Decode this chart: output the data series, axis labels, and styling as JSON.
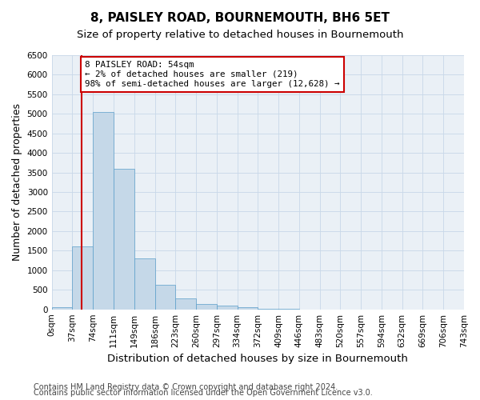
{
  "title": "8, PAISLEY ROAD, BOURNEMOUTH, BH6 5ET",
  "subtitle": "Size of property relative to detached houses in Bournemouth",
  "xlabel": "Distribution of detached houses by size in Bournemouth",
  "ylabel": "Number of detached properties",
  "bin_labels": [
    "0sqm",
    "37sqm",
    "74sqm",
    "111sqm",
    "149sqm",
    "186sqm",
    "223sqm",
    "260sqm",
    "297sqm",
    "334sqm",
    "372sqm",
    "409sqm",
    "446sqm",
    "483sqm",
    "520sqm",
    "557sqm",
    "594sqm",
    "632sqm",
    "669sqm",
    "706sqm",
    "743sqm"
  ],
  "bar_values": [
    50,
    1620,
    5050,
    3600,
    1300,
    620,
    270,
    130,
    90,
    50,
    10,
    10,
    0,
    0,
    0,
    0,
    0,
    0,
    0,
    0
  ],
  "bar_color": "#c5d8e8",
  "bar_edge_color": "#5a9ec9",
  "annotation_text": "8 PAISLEY ROAD: 54sqm\n← 2% of detached houses are smaller (219)\n98% of semi-detached houses are larger (12,628) →",
  "annotation_box_color": "#ffffff",
  "annotation_box_edge": "#cc0000",
  "property_line_color": "#cc0000",
  "ylim": [
    0,
    6500
  ],
  "yticks": [
    0,
    500,
    1000,
    1500,
    2000,
    2500,
    3000,
    3500,
    4000,
    4500,
    5000,
    5500,
    6000,
    6500
  ],
  "footer_line1": "Contains HM Land Registry data © Crown copyright and database right 2024.",
  "footer_line2": "Contains public sector information licensed under the Open Government Licence v3.0.",
  "bg_color": "#ffffff",
  "ax_bg_color": "#eaf0f6",
  "grid_color": "#c8d8e8",
  "title_fontsize": 11,
  "subtitle_fontsize": 9.5,
  "axis_label_fontsize": 9,
  "tick_fontsize": 7.5,
  "footer_fontsize": 7
}
